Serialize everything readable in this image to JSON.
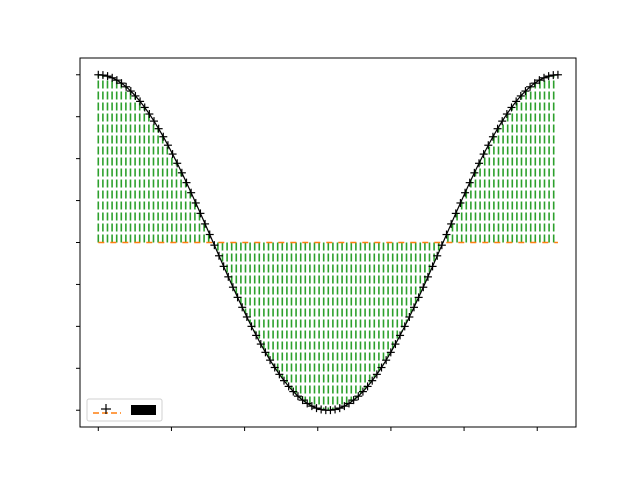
{
  "chart_data": {
    "type": "line",
    "title": "",
    "xlabel": "",
    "ylabel": "",
    "xlim": [
      -0.25,
      6.53
    ],
    "ylim": [
      -1.1,
      1.1
    ],
    "x_ticks": [
      0,
      1,
      2,
      3,
      4,
      5,
      6
    ],
    "y_ticks": [
      -1.0,
      -0.75,
      -0.5,
      -0.25,
      0.0,
      0.25,
      0.5,
      0.75,
      1.0
    ],
    "tick_labels_visible": false,
    "grid": false,
    "legend": {
      "placement": "lower-left",
      "entries": [
        "",
        ""
      ]
    },
    "series": [
      {
        "kind": "line+markers",
        "marker": "+",
        "color": "#000000",
        "x_start": 0.0,
        "x_end": 6.283,
        "count": 100,
        "function": "cos(x)"
      },
      {
        "kind": "dashed-line",
        "color": "#ff7f0e",
        "x_start": 0.0,
        "x_end": 6.283,
        "value": 0.0
      },
      {
        "kind": "fill-between",
        "color": "#2ca02c",
        "hatch": "|",
        "between": [
          "cos(x)",
          "0"
        ]
      }
    ],
    "colors": {
      "line": "#000000",
      "baseline": "#ff7f0e",
      "fill": "#2ca02c"
    }
  }
}
